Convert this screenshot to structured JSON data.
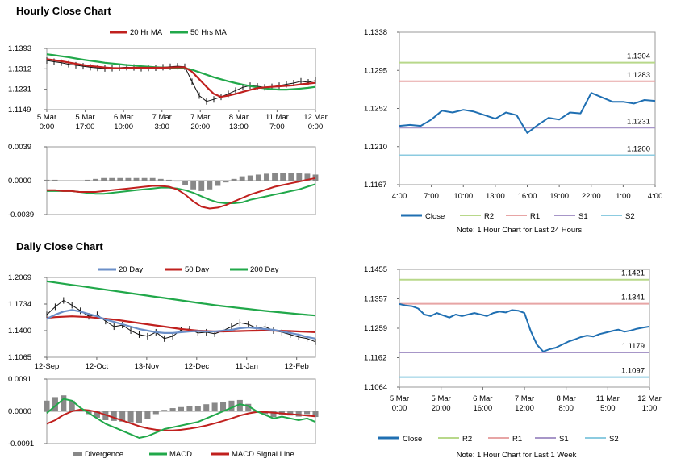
{
  "sections": {
    "hourly_title": "Hourly Close Chart",
    "daily_title": "Daily Close Chart"
  },
  "colors": {
    "ma20": "#c0201e",
    "ma50": "#21a84a",
    "ma200": "#21a84a",
    "ma20d": "#6b8fc8",
    "ma50d": "#c0201e",
    "macd": "#c0201e",
    "signal": "#21a84a",
    "divergence": "#888888",
    "close": "#1f6fb2",
    "r2": "#b8d88a",
    "r1": "#e7a5a5",
    "s1": "#a796c8",
    "s2": "#8ccbe0"
  },
  "chart_data": [
    {
      "id": "hourly_price",
      "type": "line",
      "title": "",
      "legend": [
        "20 Hr MA",
        "50 Hrs MA"
      ],
      "yticks": [
        "1.1393",
        "1.1312",
        "1.1231",
        "1.1149"
      ],
      "ylim": [
        1.1149,
        1.1393
      ],
      "xticks": [
        [
          "5 Mar",
          "0:00"
        ],
        [
          "5 Mar",
          "17:00"
        ],
        [
          "6 Mar",
          "10:00"
        ],
        [
          "7 Mar",
          "3:00"
        ],
        [
          "7 Mar",
          "20:00"
        ],
        [
          "8 Mar",
          "13:00"
        ],
        [
          "11 Mar",
          "7:00"
        ],
        [
          "12 Mar",
          "0:00"
        ]
      ],
      "series": [
        {
          "name": "Close",
          "values": [
            1.1345,
            1.134,
            1.1336,
            1.133,
            1.1326,
            1.1322,
            1.1318,
            1.1315,
            1.1313,
            1.1314,
            1.1316,
            1.1318,
            1.1317,
            1.1314,
            1.1315,
            1.1316,
            1.1318,
            1.132,
            1.1322,
            1.132,
            1.126,
            1.1205,
            1.1182,
            1.119,
            1.12,
            1.1212,
            1.1225,
            1.1238,
            1.1245,
            1.1242,
            1.1238,
            1.124,
            1.1245,
            1.125,
            1.1255,
            1.1262,
            1.1258,
            1.1265
          ]
        },
        {
          "name": "20 Hr MA",
          "values": [
            1.135,
            1.1346,
            1.1342,
            1.1337,
            1.1332,
            1.1327,
            1.1323,
            1.132,
            1.1317,
            1.1315,
            1.1314,
            1.1315,
            1.1316,
            1.1316,
            1.1316,
            1.1316,
            1.1316,
            1.1317,
            1.1318,
            1.1318,
            1.13,
            1.127,
            1.124,
            1.1212,
            1.12,
            1.1205,
            1.1212,
            1.122,
            1.1228,
            1.1235,
            1.1238,
            1.124,
            1.1242,
            1.1244,
            1.1246,
            1.125,
            1.1253,
            1.1256
          ]
        },
        {
          "name": "50 Hrs MA",
          "values": [
            1.137,
            1.1366,
            1.1362,
            1.1358,
            1.1353,
            1.1348,
            1.1344,
            1.134,
            1.1336,
            1.1333,
            1.133,
            1.1327,
            1.1325,
            1.1322,
            1.132,
            1.1318,
            1.1317,
            1.1316,
            1.1315,
            1.1314,
            1.1308,
            1.1298,
            1.1288,
            1.1278,
            1.127,
            1.1262,
            1.1255,
            1.1249,
            1.1243,
            1.1238,
            1.1234,
            1.1231,
            1.1229,
            1.1229,
            1.1231,
            1.1233,
            1.1236,
            1.124
          ]
        }
      ]
    },
    {
      "id": "hourly_macd",
      "type": "line",
      "legend": [
        "Divergence",
        "MACD",
        "MACD Signal Line"
      ],
      "yticks": [
        "0.0039",
        "0.0000",
        "-0.0039"
      ],
      "ylim": [
        -0.0039,
        0.0039
      ],
      "series": [
        {
          "name": "MACD",
          "values": [
            -0.0011,
            -0.0011,
            -0.0012,
            -0.0012,
            -0.0013,
            -0.0013,
            -0.0013,
            -0.0012,
            -0.0011,
            -0.001,
            -0.0009,
            -0.0008,
            -0.0007,
            -0.0006,
            -0.0006,
            -0.0007,
            -0.001,
            -0.0016,
            -0.0024,
            -0.003,
            -0.0032,
            -0.0031,
            -0.0028,
            -0.0024,
            -0.002,
            -0.0016,
            -0.0013,
            -0.001,
            -0.0007,
            -0.0005,
            -0.0003,
            -0.0001,
            0.0001,
            0.0003
          ]
        },
        {
          "name": "MACD Signal Line",
          "values": [
            -0.0012,
            -0.0012,
            -0.0012,
            -0.0012,
            -0.0013,
            -0.0014,
            -0.0015,
            -0.0015,
            -0.0014,
            -0.0013,
            -0.0012,
            -0.0011,
            -0.001,
            -0.0009,
            -0.0008,
            -0.0008,
            -0.0009,
            -0.0011,
            -0.0014,
            -0.0018,
            -0.0022,
            -0.0025,
            -0.0026,
            -0.0026,
            -0.0025,
            -0.0022,
            -0.002,
            -0.0018,
            -0.0016,
            -0.0014,
            -0.0012,
            -0.001,
            -0.0007,
            -0.0004
          ]
        },
        {
          "name": "Divergence",
          "values": [
            0.0001,
            0.0001,
            0.0,
            0.0,
            0.0,
            0.0001,
            0.0002,
            0.0003,
            0.0003,
            0.0003,
            0.0003,
            0.0003,
            0.0003,
            0.0003,
            0.0002,
            0.0001,
            -0.0001,
            -0.0005,
            -0.001,
            -0.0012,
            -0.001,
            -0.0006,
            -0.0002,
            0.0002,
            0.0005,
            0.0006,
            0.0007,
            0.0008,
            0.0009,
            0.0009,
            0.0009,
            0.0009,
            0.0008,
            0.0007
          ]
        }
      ]
    },
    {
      "id": "hourly_levels",
      "type": "line",
      "legend": [
        "Close",
        "R2",
        "R1",
        "S1",
        "S2"
      ],
      "note": "Note: 1 Hour Chart for Last 24 Hours",
      "yticks": [
        "1.1338",
        "1.1295",
        "1.1252",
        "1.1210",
        "1.1167"
      ],
      "ylim": [
        1.1167,
        1.1338
      ],
      "xticks": [
        "4:00",
        "7:00",
        "10:00",
        "13:00",
        "16:00",
        "19:00",
        "22:00",
        "1:00",
        "4:00"
      ],
      "levels": [
        {
          "name": "R2",
          "value": 1.1304,
          "label": "1.1304"
        },
        {
          "name": "R1",
          "value": 1.1283,
          "label": "1.1283"
        },
        {
          "name": "S1",
          "value": 1.1231,
          "label": "1.1231"
        },
        {
          "name": "S2",
          "value": 1.12,
          "label": "1.1200"
        }
      ],
      "series": [
        {
          "name": "Close",
          "values": [
            1.1233,
            1.1234,
            1.1233,
            1.124,
            1.125,
            1.1248,
            1.1251,
            1.1249,
            1.1245,
            1.1241,
            1.1248,
            1.1245,
            1.1225,
            1.1234,
            1.1242,
            1.124,
            1.1248,
            1.1247,
            1.127,
            1.1265,
            1.126,
            1.126,
            1.1258,
            1.1262,
            1.1261
          ]
        }
      ]
    },
    {
      "id": "daily_price",
      "type": "line",
      "legend": [
        "20 Day",
        "50 Day",
        "200 Day"
      ],
      "yticks": [
        "1.2069",
        "1.1734",
        "1.1400",
        "1.1065"
      ],
      "ylim": [
        1.1065,
        1.2069
      ],
      "xticks": [
        "12-Sep",
        "12-Oct",
        "13-Nov",
        "12-Dec",
        "11-Jan",
        "12-Feb"
      ],
      "series": [
        {
          "name": "Close",
          "values": [
            1.16,
            1.17,
            1.178,
            1.172,
            1.165,
            1.158,
            1.16,
            1.152,
            1.145,
            1.147,
            1.14,
            1.135,
            1.133,
            1.138,
            1.13,
            1.133,
            1.141,
            1.142,
            1.137,
            1.138,
            1.136,
            1.14,
            1.145,
            1.15,
            1.148,
            1.143,
            1.145,
            1.14,
            1.138,
            1.135,
            1.132,
            1.13,
            1.126
          ]
        },
        {
          "name": "20 Day",
          "values": [
            1.155,
            1.16,
            1.164,
            1.166,
            1.164,
            1.161,
            1.158,
            1.154,
            1.151,
            1.148,
            1.145,
            1.142,
            1.14,
            1.138,
            1.137,
            1.137,
            1.138,
            1.139,
            1.1395,
            1.139,
            1.139,
            1.14,
            1.141,
            1.143,
            1.144,
            1.143,
            1.142,
            1.141,
            1.139,
            1.137,
            1.135,
            1.132,
            1.13
          ]
        },
        {
          "name": "50 Day",
          "values": [
            1.156,
            1.157,
            1.1575,
            1.158,
            1.1575,
            1.157,
            1.156,
            1.155,
            1.154,
            1.1525,
            1.151,
            1.1495,
            1.148,
            1.1465,
            1.145,
            1.1435,
            1.142,
            1.141,
            1.14,
            1.1395,
            1.139,
            1.139,
            1.1392,
            1.1395,
            1.1398,
            1.14,
            1.1402,
            1.14,
            1.1398,
            1.1395,
            1.139,
            1.1385,
            1.138
          ]
        },
        {
          "name": "200 Day",
          "values": [
            1.202,
            1.2005,
            1.199,
            1.1975,
            1.196,
            1.1945,
            1.193,
            1.1915,
            1.19,
            1.1885,
            1.187,
            1.1855,
            1.184,
            1.1825,
            1.181,
            1.1795,
            1.178,
            1.1765,
            1.175,
            1.1735,
            1.172,
            1.1708,
            1.1696,
            1.1684,
            1.1672,
            1.166,
            1.1648,
            1.1638,
            1.1628,
            1.1618,
            1.1608,
            1.1598,
            1.159
          ]
        }
      ]
    },
    {
      "id": "daily_macd",
      "type": "line",
      "legend": [
        "Divergence",
        "MACD",
        "MACD Signal Line"
      ],
      "yticks": [
        "0.0091",
        "0.0000",
        "-0.0091"
      ],
      "ylim": [
        -0.0091,
        0.0091
      ],
      "series": [
        {
          "name": "MACD",
          "values": [
            -0.0005,
            0.0015,
            0.0035,
            0.003,
            0.001,
            -0.0005,
            -0.002,
            -0.0035,
            -0.0045,
            -0.0055,
            -0.0065,
            -0.0075,
            -0.007,
            -0.006,
            -0.005,
            -0.0045,
            -0.004,
            -0.0035,
            -0.003,
            -0.002,
            -0.001,
            0.0,
            0.001,
            0.002,
            0.0015,
            0.0,
            -0.001,
            -0.002,
            -0.0015,
            -0.002,
            -0.0025,
            -0.002,
            -0.003
          ]
        },
        {
          "name": "MACD Signal Line",
          "values": [
            -0.0035,
            -0.0025,
            -0.001,
            0.0,
            0.0005,
            0.0003,
            -0.0002,
            -0.001,
            -0.0018,
            -0.0026,
            -0.0034,
            -0.0042,
            -0.0048,
            -0.0052,
            -0.0054,
            -0.0054,
            -0.0052,
            -0.0049,
            -0.0045,
            -0.004,
            -0.0034,
            -0.0027,
            -0.002,
            -0.0012,
            -0.0006,
            -0.0002,
            -0.0002,
            -0.0004,
            -0.0006,
            -0.0008,
            -0.001,
            -0.0012,
            -0.0014
          ]
        },
        {
          "name": "Divergence",
          "values": [
            0.003,
            0.004,
            0.0045,
            0.003,
            0.0005,
            -0.0008,
            -0.0018,
            -0.0025,
            -0.0027,
            -0.0029,
            -0.0031,
            -0.0033,
            -0.0022,
            -0.0008,
            0.0004,
            0.0009,
            0.0012,
            0.0014,
            0.0015,
            0.002,
            0.0024,
            0.0027,
            0.003,
            0.0032,
            0.0021,
            0.0002,
            -0.0008,
            -0.0016,
            -0.0009,
            -0.0012,
            -0.0015,
            -0.0008,
            -0.0016
          ]
        }
      ]
    },
    {
      "id": "daily_levels",
      "type": "line",
      "legend": [
        "Close",
        "R2",
        "R1",
        "S1",
        "S2"
      ],
      "note": "Note: 1 Hour Chart for Last 1 Week",
      "yticks": [
        "1.1455",
        "1.1357",
        "1.1259",
        "1.1162",
        "1.1064"
      ],
      "ylim": [
        1.1064,
        1.1455
      ],
      "xticks": [
        [
          "5 Mar",
          "0:00"
        ],
        [
          "5 Mar",
          "20:00"
        ],
        [
          "6 Mar",
          "16:00"
        ],
        [
          "7 Mar",
          "12:00"
        ],
        [
          "8 Mar",
          "8:00"
        ],
        [
          "11 Mar",
          "5:00"
        ],
        [
          "12 Mar",
          "1:00"
        ]
      ],
      "levels": [
        {
          "name": "R2",
          "value": 1.1421,
          "label": "1.1421"
        },
        {
          "name": "R1",
          "value": 1.1341,
          "label": "1.1341"
        },
        {
          "name": "S1",
          "value": 1.1179,
          "label": "1.1179"
        },
        {
          "name": "S2",
          "value": 1.1097,
          "label": "1.1097"
        }
      ],
      "series": [
        {
          "name": "Close",
          "values": [
            1.134,
            1.1335,
            1.1333,
            1.1325,
            1.1305,
            1.13,
            1.131,
            1.1302,
            1.1295,
            1.1305,
            1.13,
            1.1305,
            1.131,
            1.1305,
            1.13,
            1.131,
            1.1315,
            1.1312,
            1.132,
            1.1318,
            1.131,
            1.125,
            1.1205,
            1.1182,
            1.119,
            1.1195,
            1.1205,
            1.1215,
            1.1222,
            1.123,
            1.1235,
            1.1232,
            1.124,
            1.1245,
            1.125,
            1.1255,
            1.1248,
            1.1252,
            1.1258,
            1.1262,
            1.1265
          ]
        }
      ]
    }
  ]
}
